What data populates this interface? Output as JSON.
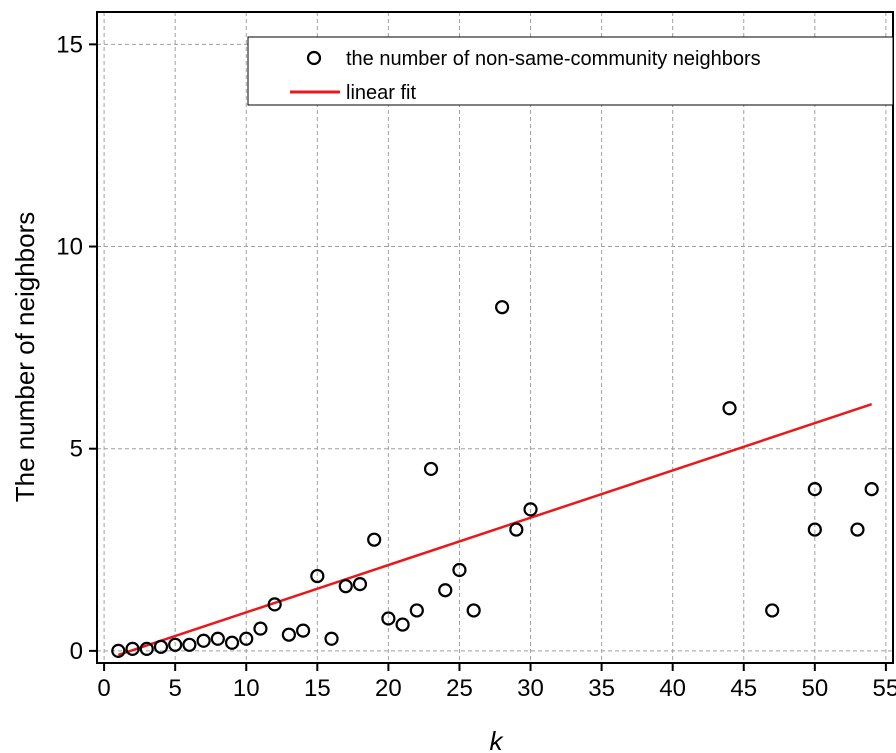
{
  "chart_data": {
    "type": "scatter",
    "xlabel": "k",
    "ylabel": "The number of neighbors",
    "xlim": [
      -0.5,
      55.5
    ],
    "ylim": [
      -0.3,
      15.8
    ],
    "x_ticks": [
      0,
      5,
      10,
      15,
      20,
      25,
      30,
      35,
      40,
      45,
      50,
      55
    ],
    "y_ticks": [
      0,
      5,
      10,
      15
    ],
    "grid": true,
    "legend_position": "top-right",
    "series": [
      {
        "name": "the number of non-same-community neighbors",
        "kind": "scatter",
        "marker": "open-circle",
        "color": "#000000",
        "points": [
          [
            1,
            0.0
          ],
          [
            2,
            0.05
          ],
          [
            3,
            0.05
          ],
          [
            4,
            0.1
          ],
          [
            5,
            0.15
          ],
          [
            6,
            0.15
          ],
          [
            7,
            0.25
          ],
          [
            8,
            0.3
          ],
          [
            9,
            0.2
          ],
          [
            10,
            0.3
          ],
          [
            11,
            0.55
          ],
          [
            12,
            1.15
          ],
          [
            13,
            0.4
          ],
          [
            14,
            0.5
          ],
          [
            15,
            1.85
          ],
          [
            16,
            0.3
          ],
          [
            17,
            1.6
          ],
          [
            18,
            1.65
          ],
          [
            19,
            2.75
          ],
          [
            20,
            0.8
          ],
          [
            21,
            0.65
          ],
          [
            22,
            1.0
          ],
          [
            23,
            4.5
          ],
          [
            24,
            1.5
          ],
          [
            25,
            2.0
          ],
          [
            26,
            1.0
          ],
          [
            28,
            8.5
          ],
          [
            29,
            3.0
          ],
          [
            30,
            3.5
          ],
          [
            44,
            6.0
          ],
          [
            47,
            1.0
          ],
          [
            50,
            3.0
          ],
          [
            50,
            4.0
          ],
          [
            53,
            3.0
          ],
          [
            54,
            4.0
          ]
        ]
      },
      {
        "name": "linear fit",
        "kind": "line",
        "color": "#e8191c",
        "points": [
          [
            1,
            -0.1
          ],
          [
            54,
            6.1
          ]
        ]
      }
    ]
  }
}
